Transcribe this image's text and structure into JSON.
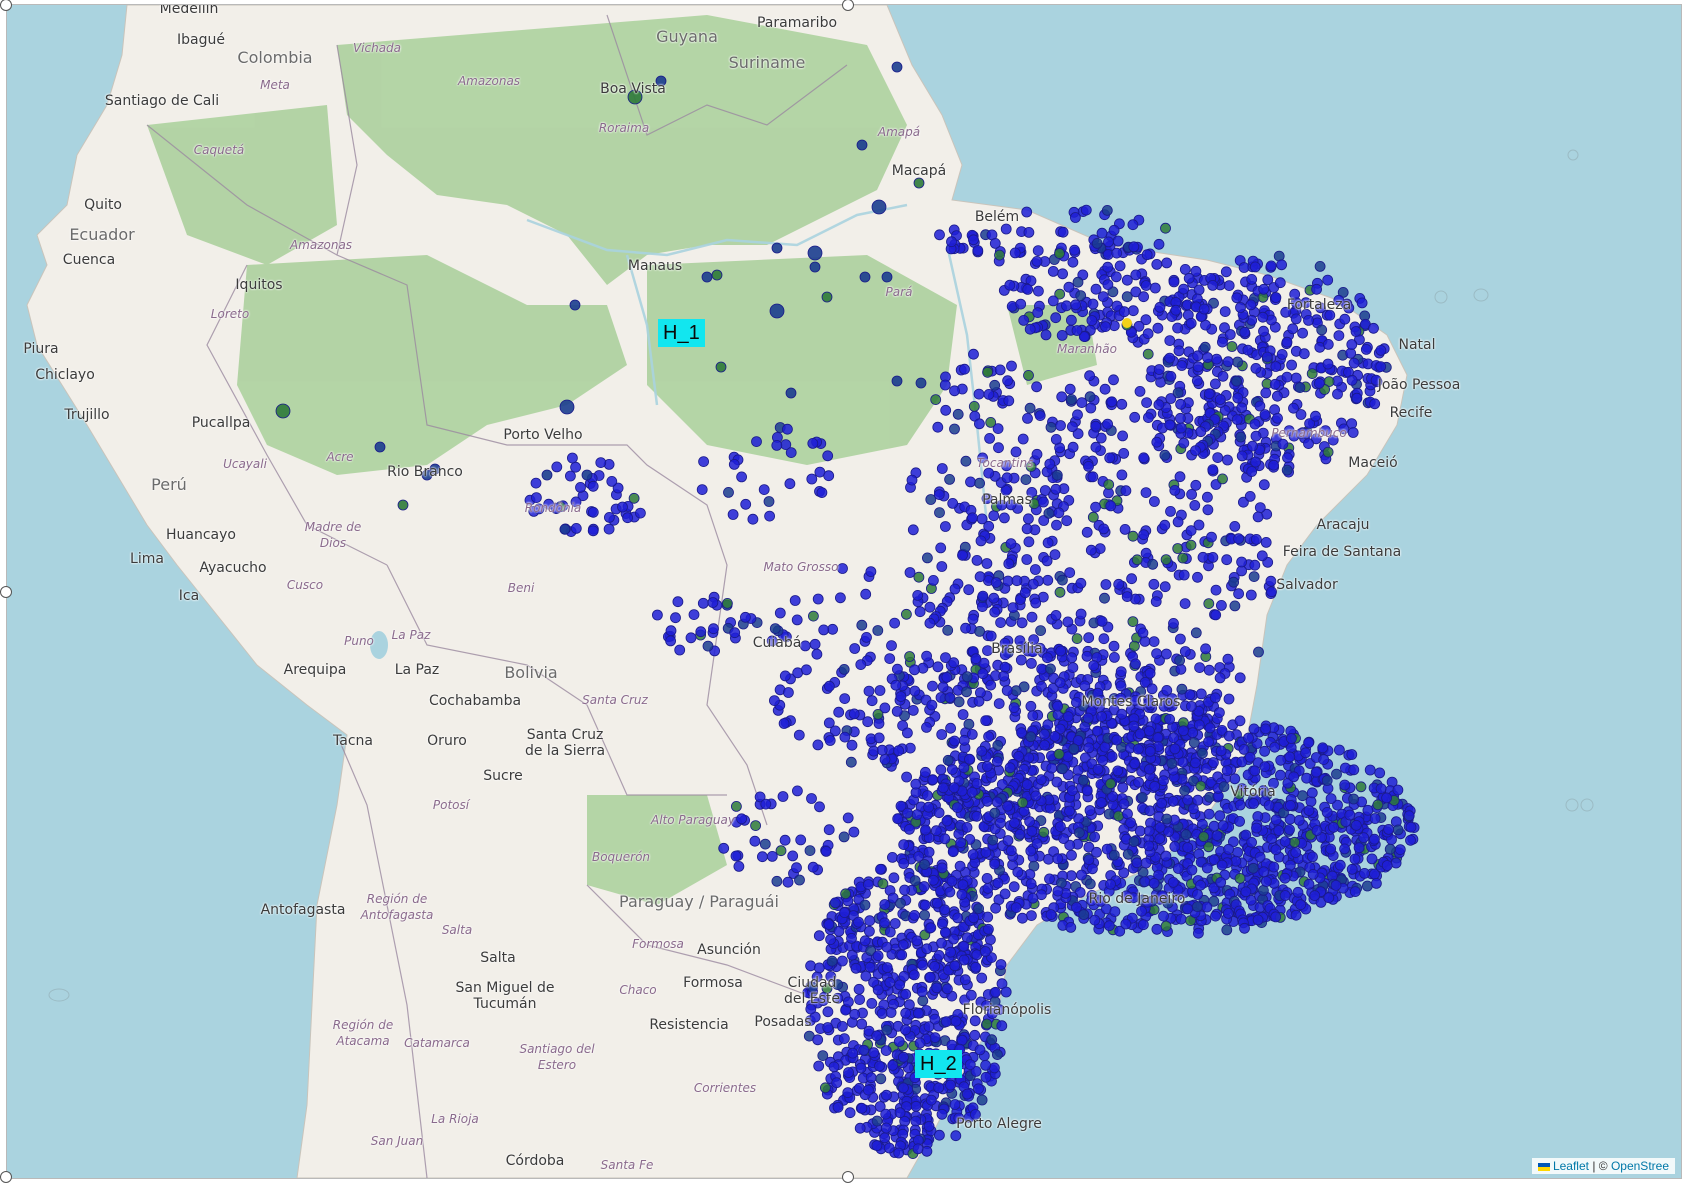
{
  "map": {
    "attribution": {
      "leaflet": "Leaflet",
      "separator": " | © ",
      "osm": "OpenStree"
    },
    "colors": {
      "ocean": "#aad3df",
      "land": "#f2efe9",
      "forest": "#add19e",
      "marker_primary": "#1f1fd6",
      "marker_dark": "#1b3d8f",
      "marker_green": "#2e7a3a",
      "marker_yellow": "#f2d21a",
      "tag_bg": "#12e6ef"
    },
    "annotations": [
      {
        "id": "H_1",
        "text": "H_1"
      },
      {
        "id": "H_2",
        "text": "H_2"
      }
    ],
    "countries": [
      "Colombia",
      "Guyana",
      "Suriname",
      "Ecuador",
      "Perú",
      "Bolivia",
      "Paraguay / Paraguái"
    ],
    "cities": [
      "Medellín",
      "Paramaribo",
      "Ibagué",
      "Santiago de Cali",
      "Boa Vista",
      "Quito",
      "Cuenca",
      "Macapá",
      "Manaus",
      "Iquitos",
      "Belém",
      "Piura",
      "Chiclayo",
      "Trujillo",
      "Pucallpa",
      "Porto Velho",
      "Rio Branco",
      "Huancayo",
      "Lima",
      "Ayacucho",
      "Ica",
      "Natal",
      "João Pessoa",
      "Recife",
      "Aracaju",
      "Feira de Santana",
      "Salvador",
      "Cuiabá",
      "Brasília",
      "Palmas",
      "Arequipa",
      "La Paz",
      "Cochabamba",
      "Santa Cruz de la Sierra",
      "Tacna",
      "Oruro",
      "Sucre",
      "Montes Claros",
      "Rio de Janeiro",
      "Antofagasta",
      "Asunción",
      "Salta",
      "San Miguel de Tucumán",
      "Formosa",
      "Ciudad del Este",
      "Resistencia",
      "Posadas",
      "Porto Alegre",
      "Córdoba",
      "Fortaleza",
      "Maceió",
      "Vitória",
      "Florianópolis"
    ],
    "regions": [
      "Vichada",
      "Meta",
      "Caquetá",
      "Amazonas",
      "Roraima",
      "Amapá",
      "Amazonas",
      "Loreto",
      "Pará",
      "Maranhão",
      "Acre",
      "Ucayali",
      "Rondônia",
      "Madre de Dios",
      "Cusco",
      "Beni",
      "Mato Grosso",
      "Tocantins",
      "Puno",
      "La Paz",
      "Santa Cruz",
      "Potosí",
      "Alto Paraguay",
      "Boquerón",
      "Región de Antofagasta",
      "Salta",
      "Formosa",
      "Chaco",
      "Región de Atacama",
      "Catamarca",
      "Santiago del Estero",
      "Corrientes",
      "La Rioja",
      "San Juan",
      "Santa Fe",
      "Pernambuco"
    ]
  }
}
